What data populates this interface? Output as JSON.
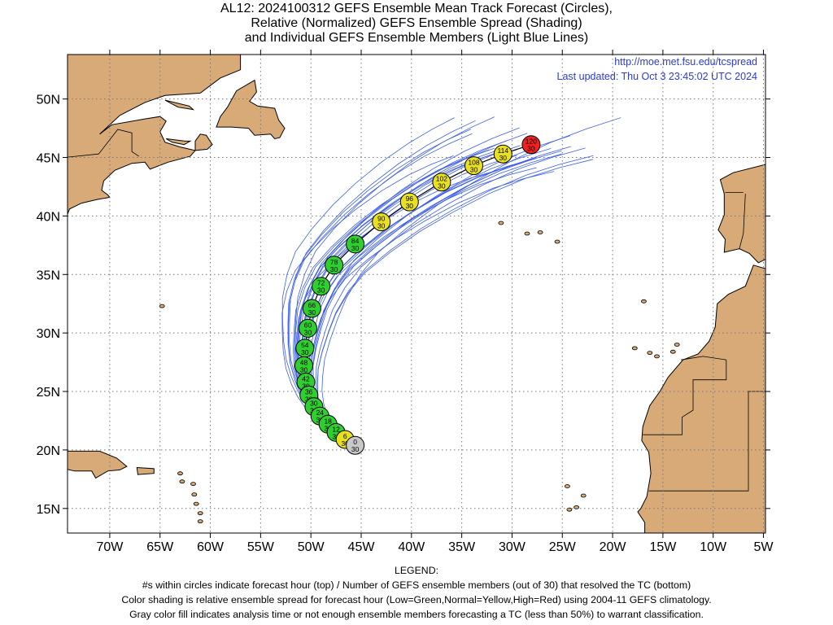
{
  "title": {
    "line1": "AL12: 2024100312 GEFS Ensemble Mean Track Forecast (Circles),",
    "line2": "Relative (Normalized) GEFS Ensemble Spread (Shading)",
    "line3": "and Individual GEFS Ensemble Members (Light Blue Lines)"
  },
  "header_right": {
    "url": "http://moe.met.fsu.edu/tcspread",
    "updated": "Last updated: Thu Oct 3 23:45:02 UTC 2024"
  },
  "axes": {
    "lat_labels": [
      "50N",
      "45N",
      "40N",
      "35N",
      "30N",
      "25N",
      "20N",
      "15N"
    ],
    "lat_values": [
      50,
      45,
      40,
      35,
      30,
      25,
      20,
      15
    ],
    "lon_labels": [
      "70W",
      "65W",
      "60W",
      "55W",
      "50W",
      "45W",
      "40W",
      "35W",
      "30W",
      "25W",
      "20W",
      "15W",
      "10W",
      "5W"
    ],
    "lon_values": [
      -70,
      -65,
      -60,
      -55,
      -50,
      -45,
      -40,
      -35,
      -30,
      -25,
      -20,
      -15,
      -10,
      -5
    ],
    "lon_range": [
      -74.2,
      -4.8
    ],
    "lat_range": [
      12.9,
      53.8
    ],
    "grid": true
  },
  "colors": {
    "land": "#d8aa78",
    "ocean": "#ffffff",
    "member_lines": "#3d5ee8",
    "mean_track": "#000000",
    "low_spread": "#2fcf2f",
    "normal_spread": "#e8e020",
    "high_spread": "#ef2020",
    "analysis_gray": "#c8c8c8"
  },
  "legend": {
    "heading": "LEGEND:",
    "line1": "#s within circles indicate forecast hour (top) / Number of GEFS ensemble members (out of 30) that resolved the TC (bottom)",
    "line2": "Color shading is relative ensemble spread for forecast hour (Low=Green,Normal=Yellow,High=Red) using 2004-11 GEFS climatology.",
    "line3": "Gray color fill indicates analysis time or not enough ensemble members forecasting a TC (less than 50%) to warrant classification."
  },
  "mean_track": [
    {
      "hour": "0",
      "members": "30",
      "lon": -45.6,
      "lat": 20.4,
      "spread": "gray"
    },
    {
      "hour": "6",
      "members": "30",
      "lon": -46.6,
      "lat": 20.9,
      "spread": "yellow"
    },
    {
      "hour": "12",
      "members": "30",
      "lon": -47.5,
      "lat": 21.5,
      "spread": "green"
    },
    {
      "hour": "18",
      "members": "30",
      "lon": -48.3,
      "lat": 22.2,
      "spread": "green"
    },
    {
      "hour": "24",
      "members": "30",
      "lon": -49.1,
      "lat": 22.9,
      "spread": "green"
    },
    {
      "hour": "30",
      "members": "30",
      "lon": -49.7,
      "lat": 23.7,
      "spread": "green"
    },
    {
      "hour": "36",
      "members": "30",
      "lon": -50.2,
      "lat": 24.7,
      "spread": "green"
    },
    {
      "hour": "42",
      "members": "30",
      "lon": -50.5,
      "lat": 25.8,
      "spread": "green"
    },
    {
      "hour": "48",
      "members": "30",
      "lon": -50.7,
      "lat": 27.2,
      "spread": "green"
    },
    {
      "hour": "54",
      "members": "30",
      "lon": -50.6,
      "lat": 28.7,
      "spread": "green"
    },
    {
      "hour": "60",
      "members": "30",
      "lon": -50.3,
      "lat": 30.4,
      "spread": "green"
    },
    {
      "hour": "66",
      "members": "30",
      "lon": -49.9,
      "lat": 32.1,
      "spread": "green"
    },
    {
      "hour": "72",
      "members": "30",
      "lon": -49.0,
      "lat": 34.0,
      "spread": "green"
    },
    {
      "hour": "78",
      "members": "30",
      "lon": -47.7,
      "lat": 35.8,
      "spread": "green"
    },
    {
      "hour": "84",
      "members": "30",
      "lon": -45.6,
      "lat": 37.6,
      "spread": "green"
    },
    {
      "hour": "90",
      "members": "30",
      "lon": -43.0,
      "lat": 39.5,
      "spread": "yellow"
    },
    {
      "hour": "96",
      "members": "30",
      "lon": -40.2,
      "lat": 41.2,
      "spread": "yellow"
    },
    {
      "hour": "102",
      "members": "30",
      "lon": -37.0,
      "lat": 42.9,
      "spread": "yellow"
    },
    {
      "hour": "108",
      "members": "30",
      "lon": -33.8,
      "lat": 44.3,
      "spread": "yellow"
    },
    {
      "hour": "114",
      "members": "30",
      "lon": -30.9,
      "lat": 45.3,
      "spread": "yellow"
    },
    {
      "hour": "120",
      "members": "30",
      "lon": -28.1,
      "lat": 46.1,
      "spread": "red"
    }
  ]
}
